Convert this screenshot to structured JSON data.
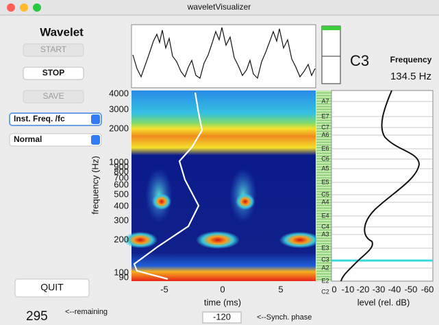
{
  "window": {
    "title": "waveletVisualizer"
  },
  "controls": {
    "heading": "Wavelet",
    "start": "START",
    "stop": "STOP",
    "save": "SAVE",
    "display_mode": "Inst. Freq. /fc",
    "scale_mode": "Normal",
    "quit": "QUIT",
    "remaining": {
      "value": 295,
      "label": "<--remaining"
    }
  },
  "spectrogram": {
    "y_label": "frequency (Hz)",
    "y_ticks": [
      4000,
      3000,
      2000,
      1000,
      900,
      800,
      700,
      600,
      500,
      400,
      300,
      200,
      100,
      90
    ],
    "x_label": "time (ms)",
    "x_ticks": [
      -5,
      0,
      5
    ],
    "synch_phase": {
      "value": -120,
      "label": "<--Synch. phase"
    }
  },
  "notes": [
    "A7",
    "E7",
    "C7",
    "A6",
    "E6",
    "C6",
    "A5",
    "E5",
    "C5",
    "A4",
    "E4",
    "C4",
    "A3",
    "E3",
    "C3",
    "A2",
    "E2",
    "C2"
  ],
  "level": {
    "x_label": "level (rel. dB)",
    "x_ticks": [
      0,
      -10,
      -20,
      -30,
      -40,
      -50,
      -60
    ]
  },
  "pitch": {
    "note": "C3",
    "frequency_label": "Frequency",
    "frequency": "134.5 Hz"
  }
}
